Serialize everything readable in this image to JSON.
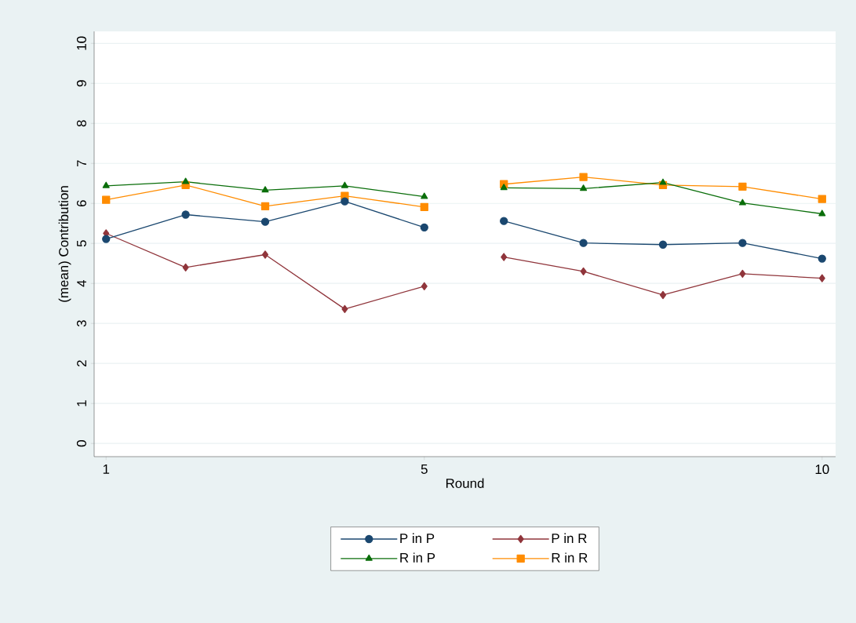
{
  "chart_data": {
    "type": "line",
    "xlabel": "Round",
    "ylabel": "(mean) Contribution",
    "x": [
      1,
      2,
      3,
      4,
      5,
      5.5,
      6,
      7,
      8,
      9,
      10
    ],
    "series": [
      {
        "name": "P in P",
        "color": "#1a476f",
        "marker": "circle",
        "values": [
          5.11,
          5.72,
          5.54,
          6.05,
          5.4,
          null,
          5.56,
          5.01,
          4.97,
          5.01,
          4.62
        ]
      },
      {
        "name": "P in R",
        "color": "#90353b",
        "marker": "diamond",
        "values": [
          5.25,
          4.4,
          4.72,
          3.36,
          3.93,
          null,
          4.66,
          4.3,
          3.71,
          4.24,
          4.13
        ]
      },
      {
        "name": "R in P",
        "color": "#0a6e0a",
        "marker": "triangle",
        "values": [
          6.44,
          6.54,
          6.33,
          6.44,
          6.17,
          null,
          6.39,
          6.37,
          6.52,
          6.01,
          5.74
        ]
      },
      {
        "name": "R in R",
        "color": "#ff8c00",
        "marker": "square",
        "values": [
          6.09,
          6.46,
          5.93,
          6.19,
          5.91,
          null,
          6.48,
          6.66,
          6.46,
          6.42,
          6.11
        ]
      }
    ],
    "xlim": [
      0.85,
      10.17
    ],
    "xticks": [
      1,
      5,
      10
    ],
    "ylim": [
      -0.33,
      10.3
    ],
    "yticks": [
      0,
      1,
      2,
      3,
      4,
      5,
      6,
      7,
      8,
      9,
      10
    ],
    "grid": "y",
    "legend": "bottom",
    "line_style": "solid"
  }
}
